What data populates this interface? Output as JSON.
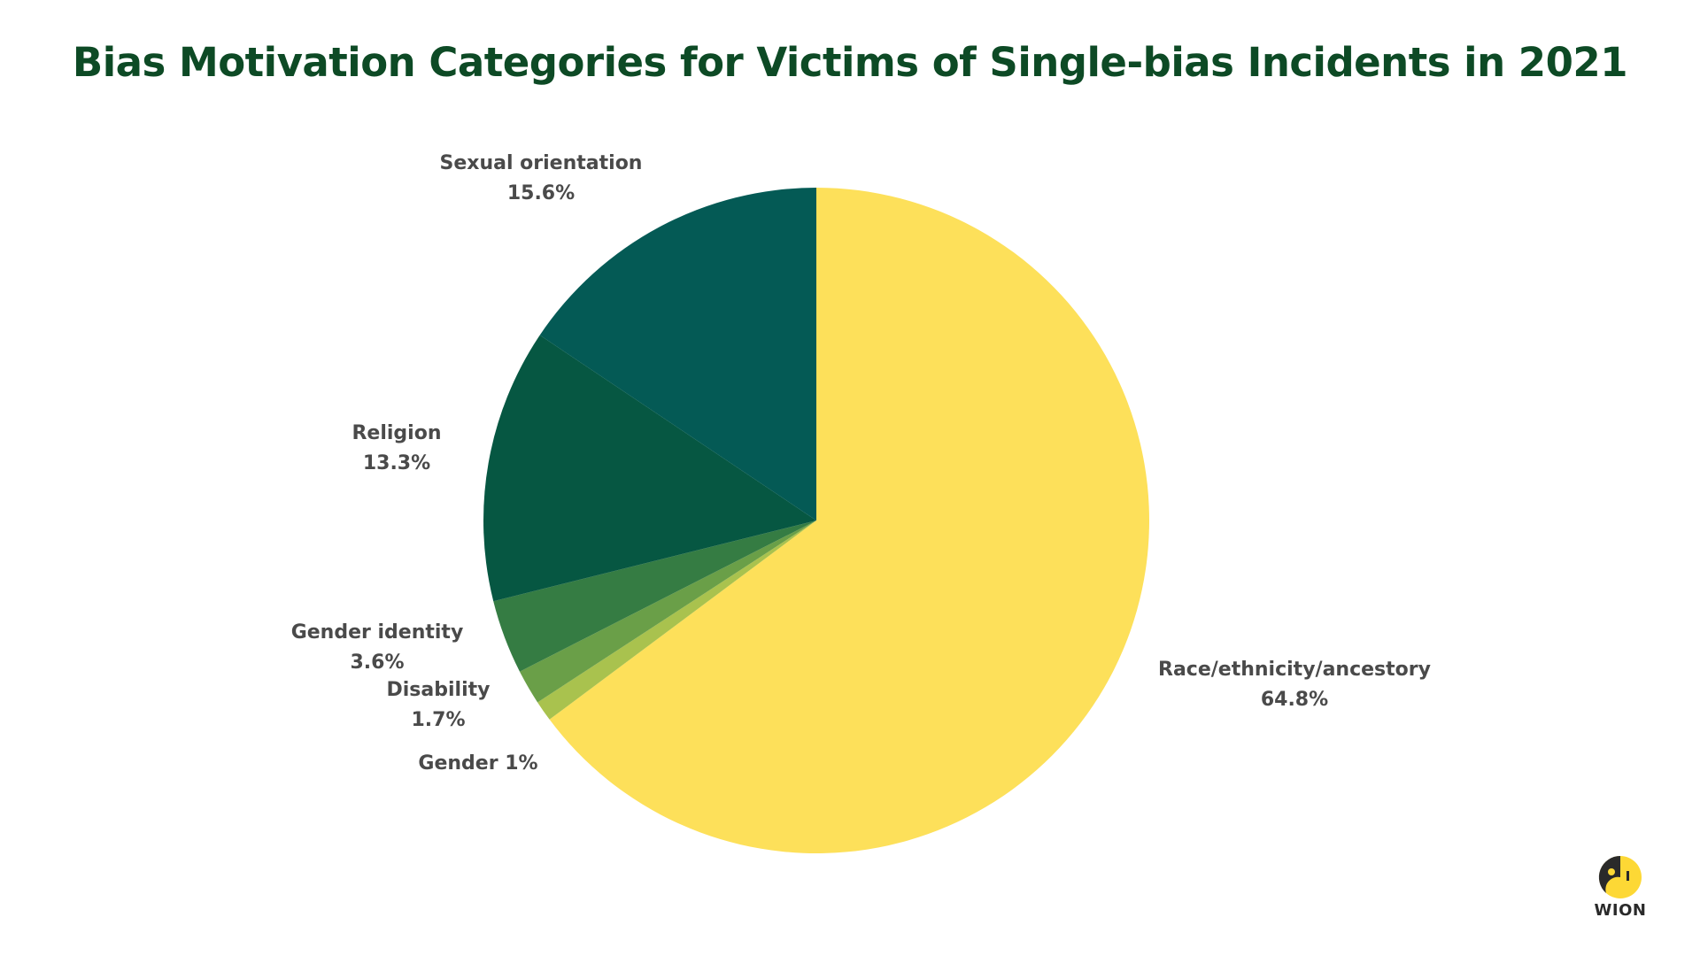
{
  "chart_data": {
    "type": "pie",
    "title": "Bias Motivation Categories for Victims of Single-bias Incidents in 2021",
    "slices": [
      {
        "label": "Race/ethnicity/ancestory",
        "value": 64.8,
        "display": "64.8%",
        "color": "#fde05a"
      },
      {
        "label": "Gender",
        "value": 1.0,
        "display": "1%",
        "color": "#a9c24e"
      },
      {
        "label": "Disability",
        "value": 1.7,
        "display": "1.7%",
        "color": "#6a9f48"
      },
      {
        "label": "Gender identity",
        "value": 3.6,
        "display": "3.6%",
        "color": "#357c43"
      },
      {
        "label": "Religion",
        "value": 13.3,
        "display": "13.3%",
        "color": "#065742"
      },
      {
        "label": "Sexual orientation",
        "value": 15.6,
        "display": "15.6%",
        "color": "#045a55"
      }
    ]
  },
  "brand": {
    "name": "WION",
    "logo_icon": "wion-logo-icon",
    "colors": {
      "logo_yellow": "#fdd835",
      "logo_dark": "#2a2a2a"
    }
  }
}
